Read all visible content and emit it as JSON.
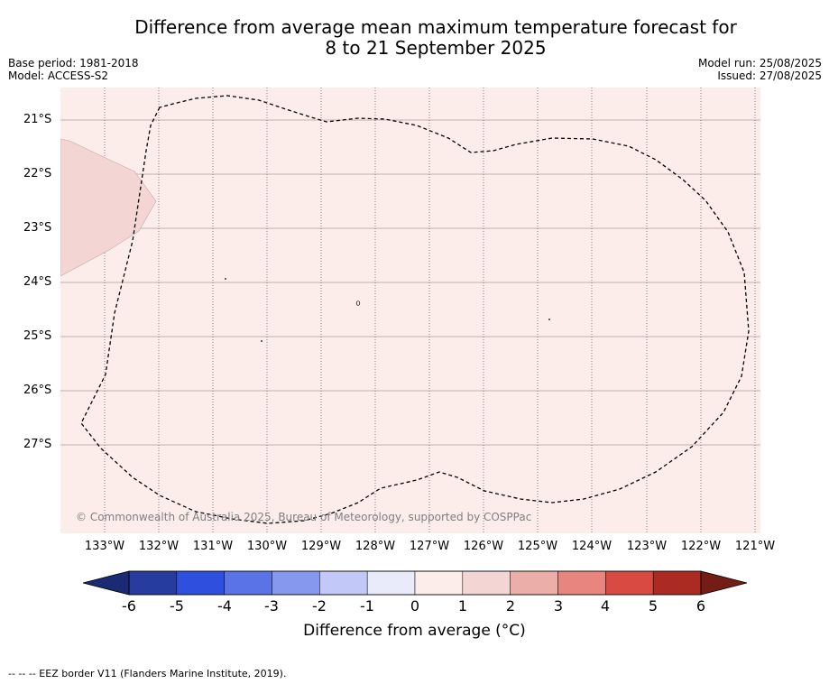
{
  "title_line1": "Difference from average mean maximum temperature forecast for",
  "title_line2": "8 to 21 September 2025",
  "base_period": "Base period: 1981-2018",
  "model": "Model: ACCESS-S2",
  "model_run": "Model run: 25/08/2025",
  "issued": "Issued: 27/08/2025",
  "lat_labels": [
    "21°S",
    "22°S",
    "23°S",
    "24°S",
    "25°S",
    "26°S",
    "27°S"
  ],
  "lon_labels": [
    "133°W",
    "132°W",
    "131°W",
    "130°W",
    "129°W",
    "128°W",
    "127°W",
    "126°W",
    "125°W",
    "124°W",
    "123°W",
    "122°W",
    "121°W"
  ],
  "copyright": "© Commonwealth of Australia 2025, Bureau of Meteorology, supported by COSPPac",
  "colorbar": {
    "ticks": [
      "-6",
      "-5",
      "-4",
      "-3",
      "-2",
      "-1",
      "0",
      "1",
      "2",
      "3",
      "4",
      "5",
      "6"
    ],
    "colors": [
      "#263c9e",
      "#2f4fdf",
      "#5a73e6",
      "#8698ee",
      "#c2c9f6",
      "#e9ebfb",
      "#fcecea",
      "#f3d6d3",
      "#ecaea8",
      "#e8857e",
      "#d94a42",
      "#ab2a22"
    ],
    "under_color": "#1b2b73",
    "over_color": "#731d17",
    "label": "Difference from average (°C)"
  },
  "background_color": "#fcecea",
  "anomaly_patch_color": "#f3d6d3",
  "footer": "--  --  -- EEZ border V11 (Flanders Marine Institute, 2019)."
}
